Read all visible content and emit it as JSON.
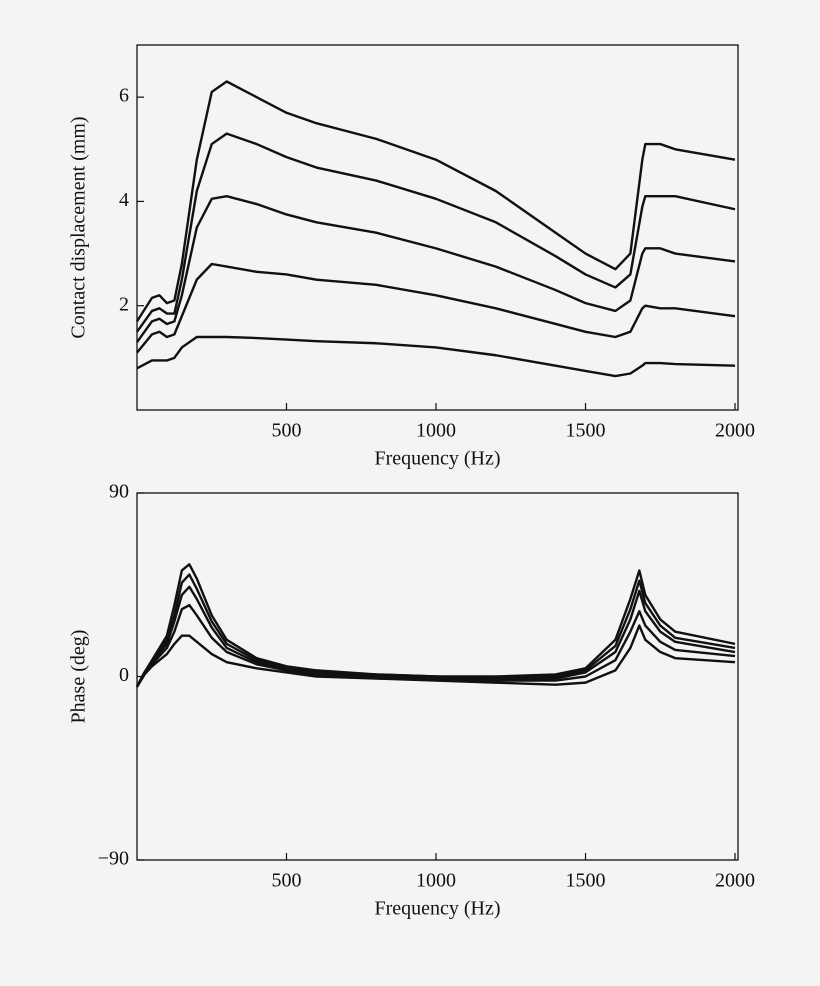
{
  "chart_data": [
    {
      "type": "line",
      "xlabel": "Frequency (Hz)",
      "ylabel": "Contact displacement (mm)",
      "color": "#111111",
      "xlim": [
        0,
        2010
      ],
      "ylim": [
        0,
        7
      ],
      "xticks": [
        500,
        1000,
        1500,
        2000
      ],
      "yticks": [
        2,
        4,
        6
      ],
      "x": [
        0,
        50,
        75,
        100,
        125,
        150,
        200,
        250,
        300,
        400,
        500,
        600,
        800,
        1000,
        1200,
        1400,
        1500,
        1600,
        1650,
        1690,
        1700,
        1750,
        1800,
        2000
      ],
      "series": [
        {
          "values": [
            1.7,
            2.15,
            2.2,
            2.05,
            2.1,
            2.8,
            4.8,
            6.1,
            6.3,
            6.0,
            5.7,
            5.5,
            5.2,
            4.8,
            4.2,
            3.4,
            3.0,
            2.7,
            3.0,
            4.8,
            5.1,
            5.1,
            5.0,
            4.8
          ]
        },
        {
          "values": [
            1.5,
            1.9,
            1.95,
            1.85,
            1.85,
            2.5,
            4.2,
            5.1,
            5.3,
            5.1,
            4.85,
            4.65,
            4.4,
            4.05,
            3.6,
            2.95,
            2.6,
            2.35,
            2.6,
            3.9,
            4.1,
            4.1,
            4.1,
            3.85
          ]
        },
        {
          "values": [
            1.3,
            1.7,
            1.75,
            1.65,
            1.7,
            2.2,
            3.5,
            4.05,
            4.1,
            3.95,
            3.75,
            3.6,
            3.4,
            3.1,
            2.75,
            2.3,
            2.05,
            1.9,
            2.1,
            3.0,
            3.1,
            3.1,
            3.0,
            2.85
          ]
        },
        {
          "values": [
            1.1,
            1.45,
            1.5,
            1.4,
            1.45,
            1.8,
            2.5,
            2.8,
            2.75,
            2.65,
            2.6,
            2.5,
            2.4,
            2.2,
            1.95,
            1.65,
            1.5,
            1.4,
            1.5,
            1.95,
            2.0,
            1.95,
            1.95,
            1.8
          ]
        },
        {
          "values": [
            0.8,
            0.95,
            0.95,
            0.95,
            1.0,
            1.2,
            1.4,
            1.4,
            1.4,
            1.38,
            1.35,
            1.32,
            1.28,
            1.2,
            1.05,
            0.85,
            0.75,
            0.65,
            0.7,
            0.85,
            0.9,
            0.9,
            0.88,
            0.85
          ]
        }
      ]
    },
    {
      "type": "line",
      "xlabel": "Frequency (Hz)",
      "ylabel": "Phase (deg)",
      "color": "#111111",
      "xlim": [
        0,
        2010
      ],
      "ylim": [
        -90,
        90
      ],
      "xticks": [
        500,
        1000,
        1500,
        2000
      ],
      "yticks": [
        {
          "value": -90,
          "label": "−90"
        },
        0,
        90
      ],
      "x": [
        0,
        25,
        50,
        100,
        125,
        150,
        175,
        200,
        250,
        300,
        400,
        500,
        600,
        800,
        1000,
        1200,
        1400,
        1500,
        1600,
        1650,
        1680,
        1700,
        1750,
        1800,
        2000
      ],
      "series": [
        {
          "values": [
            -5,
            2,
            8,
            20,
            35,
            52,
            55,
            48,
            30,
            18,
            9,
            5,
            3,
            1,
            0,
            0,
            1,
            4,
            18,
            38,
            52,
            40,
            28,
            22,
            16
          ]
        },
        {
          "values": [
            -5,
            2,
            7,
            18,
            30,
            46,
            50,
            43,
            27,
            16,
            8,
            4,
            2,
            1,
            0,
            -1,
            0,
            3,
            15,
            33,
            47,
            36,
            25,
            19,
            14
          ]
        },
        {
          "values": [
            -5,
            2,
            7,
            16,
            27,
            40,
            44,
            38,
            24,
            14,
            7,
            4,
            2,
            0,
            -1,
            -1,
            -1,
            2,
            12,
            28,
            42,
            32,
            22,
            17,
            12
          ]
        },
        {
          "values": [
            -5,
            1,
            6,
            14,
            22,
            33,
            35,
            30,
            19,
            12,
            6,
            3,
            1,
            0,
            -1,
            -2,
            -2,
            0,
            8,
            22,
            32,
            25,
            17,
            13,
            10
          ]
        },
        {
          "values": [
            -5,
            1,
            5,
            11,
            16,
            20,
            20,
            17,
            11,
            7,
            4,
            2,
            0,
            -1,
            -2,
            -3,
            -4,
            -3,
            3,
            14,
            25,
            18,
            12,
            9,
            7
          ]
        }
      ]
    }
  ]
}
